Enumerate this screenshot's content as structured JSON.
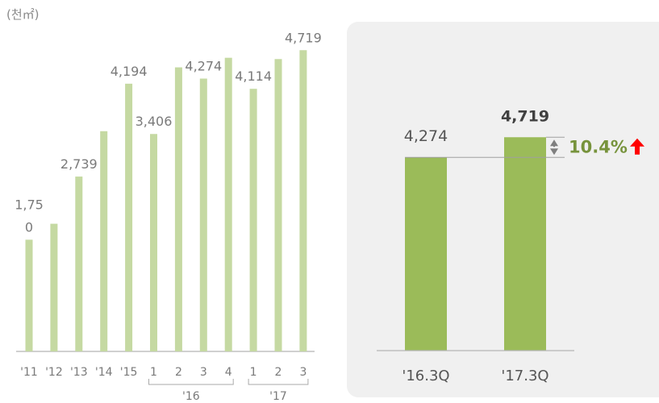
{
  "unit_label": "(천㎡)",
  "chart_data": [
    {
      "type": "bar",
      "categories": [
        "'11",
        "'12",
        "'13",
        "'14",
        "'15",
        "1",
        "2",
        "3",
        "4",
        "1",
        "2",
        "3"
      ],
      "values": [
        1750,
        2000,
        2739,
        3450,
        4194,
        3406,
        4450,
        4274,
        4600,
        4114,
        4580,
        4719
      ],
      "value_labels": [
        "1,75\n0",
        "",
        "2,739",
        "",
        "4,194",
        "3,406",
        "",
        "4,274",
        "",
        "4,114",
        "",
        "4,719"
      ],
      "groups": [
        {
          "label": "'16",
          "from": 5,
          "to": 8
        },
        {
          "label": "'17",
          "from": 9,
          "to": 11
        }
      ],
      "ylim": [
        0,
        5000
      ],
      "title": "",
      "xlabel": "",
      "ylabel": "",
      "color": "#c5d9a2",
      "grid": false
    },
    {
      "type": "bar",
      "categories": [
        "'16.3Q",
        "'17.3Q"
      ],
      "values": [
        4274,
        4719
      ],
      "value_labels": [
        "4,274",
        "4,719"
      ],
      "growth_label": "10.4%",
      "growth_arrow": "up-arrow-icon",
      "ylim": [
        0,
        5000
      ],
      "title": "",
      "xlabel": "",
      "ylabel": "",
      "color": "#9bbb59",
      "growth_color": "#77933c",
      "arrow_color": "#ff0000"
    }
  ]
}
